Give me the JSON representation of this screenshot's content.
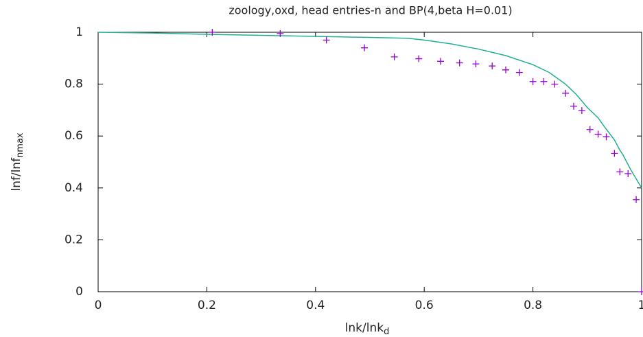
{
  "chart_data": {
    "type": "scatter-line",
    "title": "zoology,oxd, head entries-n and BP(4,beta H=0.01)",
    "xlabel": {
      "text": "lnk/lnk",
      "sub": "d"
    },
    "ylabel": {
      "text": "lnf/lnf",
      "sub": "nmax"
    },
    "xlim": [
      0,
      1
    ],
    "ylim": [
      0,
      1
    ],
    "xticks": [
      0,
      0.2,
      0.4,
      0.6,
      0.8,
      1
    ],
    "yticks": [
      0,
      0.2,
      0.4,
      0.6,
      0.8,
      1
    ],
    "grid": false,
    "points": {
      "color": "#9400d3",
      "x": [
        0.21,
        0.335,
        0.42,
        0.49,
        0.545,
        0.59,
        0.63,
        0.665,
        0.695,
        0.725,
        0.75,
        0.775,
        0.8,
        0.82,
        0.84,
        0.86,
        0.875,
        0.89,
        0.905,
        0.92,
        0.935,
        0.95,
        0.96,
        0.975,
        0.99,
        1.0
      ],
      "y": [
        1.0,
        0.995,
        0.97,
        0.94,
        0.905,
        0.898,
        0.888,
        0.882,
        0.878,
        0.87,
        0.855,
        0.845,
        0.81,
        0.81,
        0.8,
        0.765,
        0.715,
        0.698,
        0.625,
        0.607,
        0.597,
        0.533,
        0.462,
        0.455,
        0.355,
        0
      ]
    },
    "line": {
      "color": "#20b090",
      "x": [
        0,
        0.1,
        0.2,
        0.3,
        0.4,
        0.5,
        0.57,
        0.6,
        0.65,
        0.7,
        0.75,
        0.8,
        0.83,
        0.86,
        0.88,
        0.9,
        0.92,
        0.93,
        0.95,
        0.96,
        0.965,
        0.98,
        1.0
      ],
      "y": [
        1,
        0.997,
        0.992,
        0.988,
        0.984,
        0.98,
        0.977,
        0.97,
        0.955,
        0.935,
        0.91,
        0.875,
        0.845,
        0.8,
        0.76,
        0.71,
        0.67,
        0.64,
        0.585,
        0.545,
        0.53,
        0.47,
        0.4
      ]
    }
  }
}
